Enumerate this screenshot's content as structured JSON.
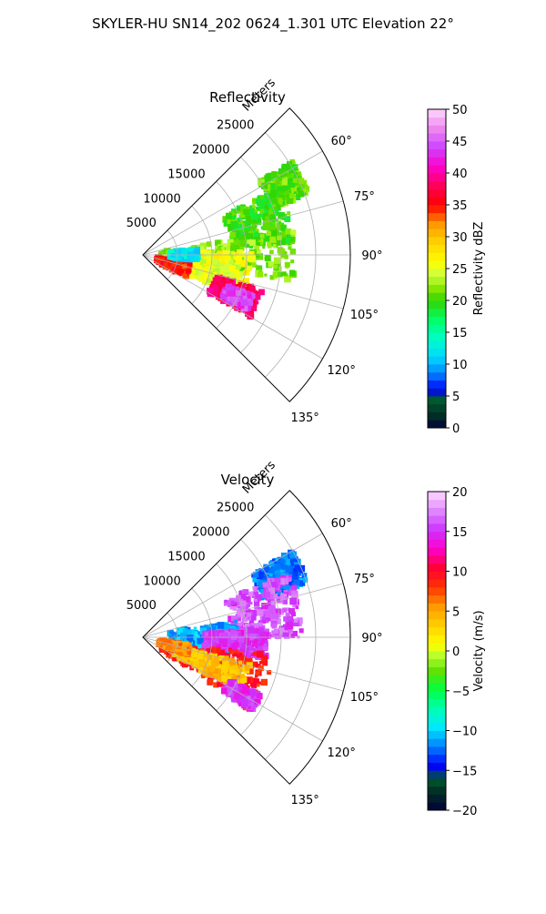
{
  "figure": {
    "title": "SKYLER-HU  SN14_202  0624_1.301 UTC Elevation 22°"
  },
  "chart_data": [
    {
      "type": "heatmap",
      "projection": "polar-sector",
      "title": "Reflectivity",
      "radial_label": "Meters",
      "radial_ticks": [
        5000,
        10000,
        15000,
        20000,
        25000
      ],
      "radial_tick_labels": [
        "5000",
        "10000",
        "15000",
        "20000",
        "25000"
      ],
      "rmax": 30000,
      "azimuth_range_deg": [
        45,
        135
      ],
      "azimuth_ticks": [
        60,
        75,
        90,
        105,
        120,
        135
      ],
      "azimuth_tick_labels": [
        "60°",
        "75°",
        "90°",
        "105°",
        "120°",
        "135°"
      ],
      "grid": true,
      "colorbar": {
        "label": "Reflectivity dBZ",
        "min": 0,
        "max": 50,
        "ticks": [
          0,
          5,
          10,
          15,
          20,
          25,
          30,
          35,
          40,
          45,
          50
        ],
        "tick_labels": [
          "0",
          "5",
          "10",
          "15",
          "20",
          "25",
          "30",
          "35",
          "40",
          "45",
          "50"
        ]
      },
      "echo_regions": [
        {
          "az": [
            58,
            70
          ],
          "r": [
            20000,
            25500
          ],
          "value": 21
        },
        {
          "az": [
            64,
            86
          ],
          "r": [
            13000,
            22000
          ],
          "value": 20
        },
        {
          "az": [
            80,
            100
          ],
          "r": [
            2500,
            22000
          ],
          "value": 22
        },
        {
          "az": [
            88,
            110
          ],
          "r": [
            3500,
            16000
          ],
          "value": 26
        },
        {
          "az": [
            95,
            113
          ],
          "r": [
            3000,
            14000
          ],
          "value": 25
        },
        {
          "az": [
            100,
            116
          ],
          "r": [
            2000,
            7000
          ],
          "value": 35
        },
        {
          "az": [
            106,
            120
          ],
          "r": [
            11000,
            18000
          ],
          "value": 38
        },
        {
          "az": [
            110,
            118
          ],
          "r": [
            13000,
            17000
          ],
          "value": 44
        },
        {
          "az": [
            84,
            96
          ],
          "r": [
            4000,
            8000
          ],
          "value": 12
        }
      ]
    },
    {
      "type": "heatmap",
      "projection": "polar-sector",
      "title": "Velocity",
      "radial_label": "Meters",
      "radial_ticks": [
        5000,
        10000,
        15000,
        20000,
        25000
      ],
      "radial_tick_labels": [
        "5000",
        "10000",
        "15000",
        "20000",
        "25000"
      ],
      "rmax": 30000,
      "azimuth_range_deg": [
        45,
        135
      ],
      "azimuth_ticks": [
        60,
        75,
        90,
        105,
        120,
        135
      ],
      "azimuth_tick_labels": [
        "60°",
        "75°",
        "90°",
        "105°",
        "120°",
        "135°"
      ],
      "grid": true,
      "colorbar": {
        "label": "Velocity (m/s)",
        "min": -20,
        "max": 20,
        "ticks": [
          -20,
          -15,
          -10,
          -5,
          0,
          5,
          10,
          15,
          20
        ],
        "tick_labels": [
          "−20",
          "−15",
          "−10",
          "−5",
          "0",
          "5",
          "10",
          "15",
          "20"
        ]
      },
      "echo_regions": [
        {
          "az": [
            60,
            72
          ],
          "r": [
            18000,
            25000
          ],
          "value": -12
        },
        {
          "az": [
            66,
            90
          ],
          "r": [
            13000,
            23000
          ],
          "value": 16
        },
        {
          "az": [
            80,
            102
          ],
          "r": [
            4000,
            14000
          ],
          "value": -11
        },
        {
          "az": [
            86,
            100
          ],
          "r": [
            9000,
            18000
          ],
          "value": 15
        },
        {
          "az": [
            98,
            124
          ],
          "r": [
            3000,
            19000
          ],
          "value": 9
        },
        {
          "az": [
            104,
            120
          ],
          "r": [
            5000,
            16000
          ],
          "value": 4
        },
        {
          "az": [
            100,
            112
          ],
          "r": [
            2500,
            7000
          ],
          "value": 6
        },
        {
          "az": [
            116,
            124
          ],
          "r": [
            14000,
            19000
          ],
          "value": 15
        }
      ]
    }
  ]
}
